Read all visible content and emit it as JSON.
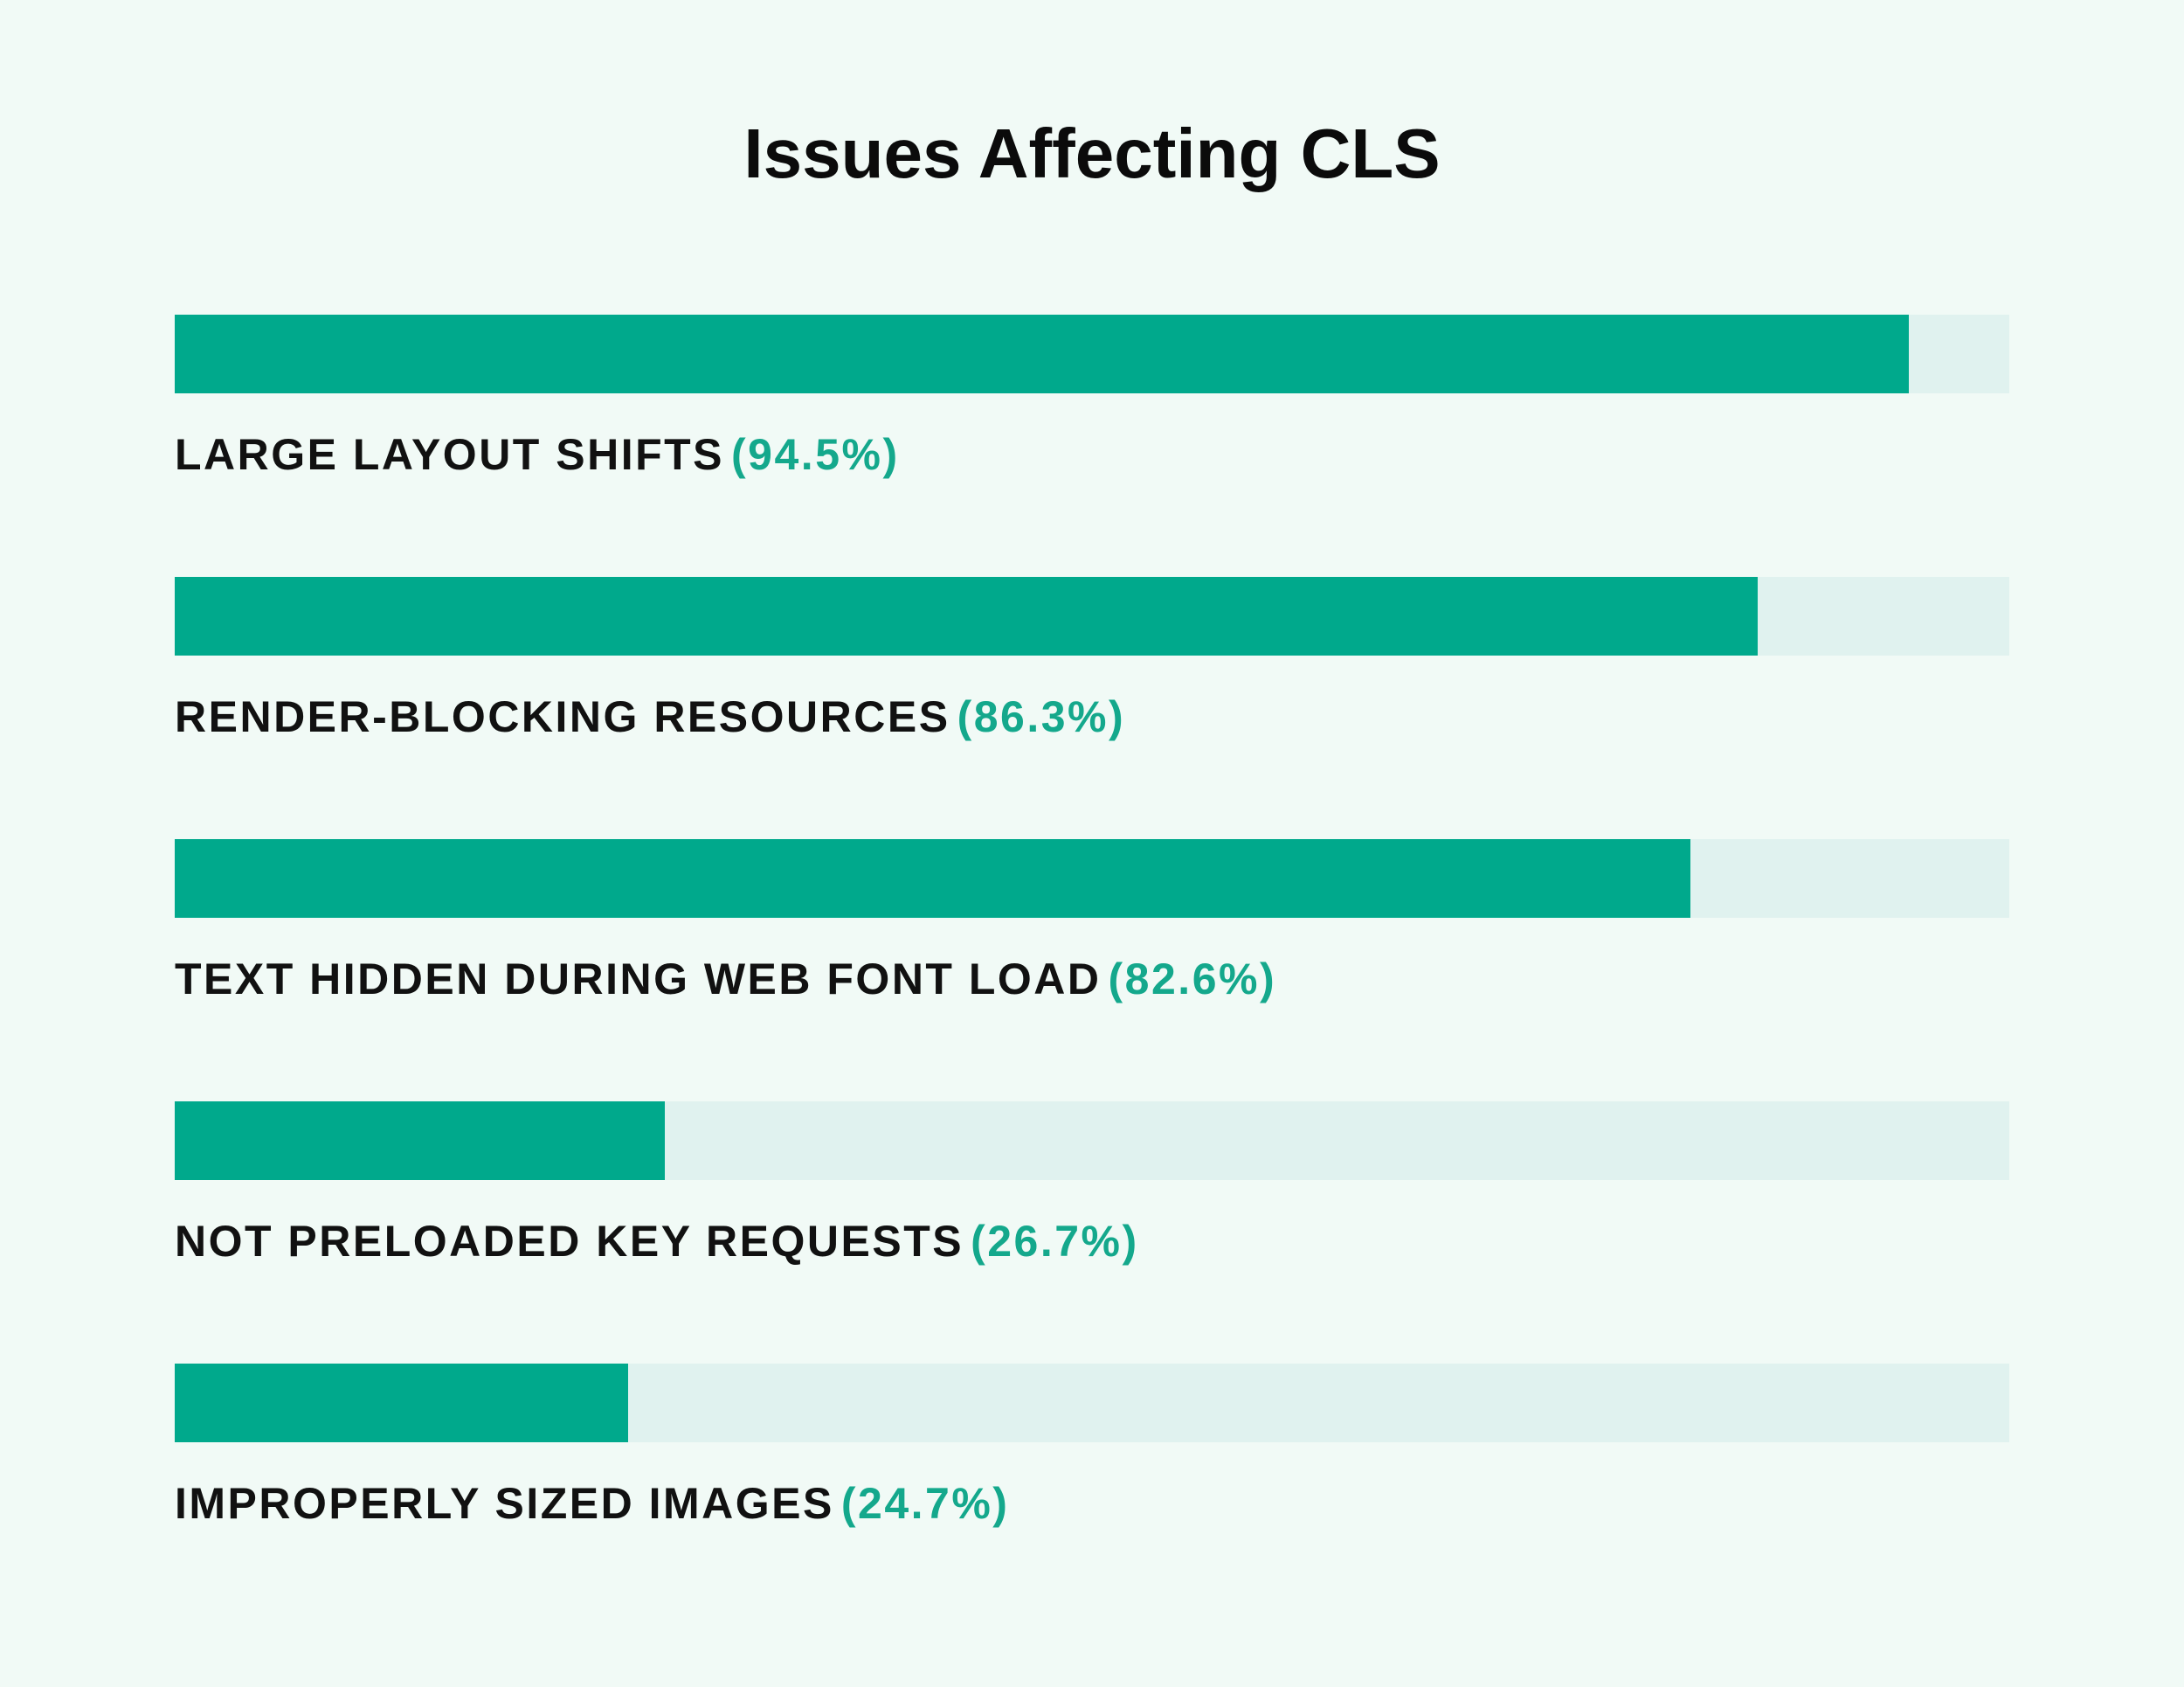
{
  "chart_data": {
    "type": "bar",
    "orientation": "horizontal",
    "title": "Issues Affecting CLS",
    "xlim": [
      0,
      100
    ],
    "grid": false,
    "categories": [
      "LARGE LAYOUT SHIFTS",
      "RENDER-BLOCKING RESOURCES",
      "TEXT HIDDEN DURING WEB FONT LOAD",
      "NOT PRELOADED KEY REQUESTS",
      "IMPROPERLY SIZED IMAGES"
    ],
    "values": [
      94.5,
      86.3,
      82.6,
      26.7,
      24.7
    ],
    "value_labels": [
      "(94.5%)",
      "(86.3%)",
      "(82.6%)",
      "(26.7%)",
      "(24.7%)"
    ],
    "colors": {
      "fill": "#00a98c",
      "track": "#e0f2ef",
      "value_text": "#14a88c",
      "label_text": "#111111",
      "background": "#f1faf6"
    }
  }
}
